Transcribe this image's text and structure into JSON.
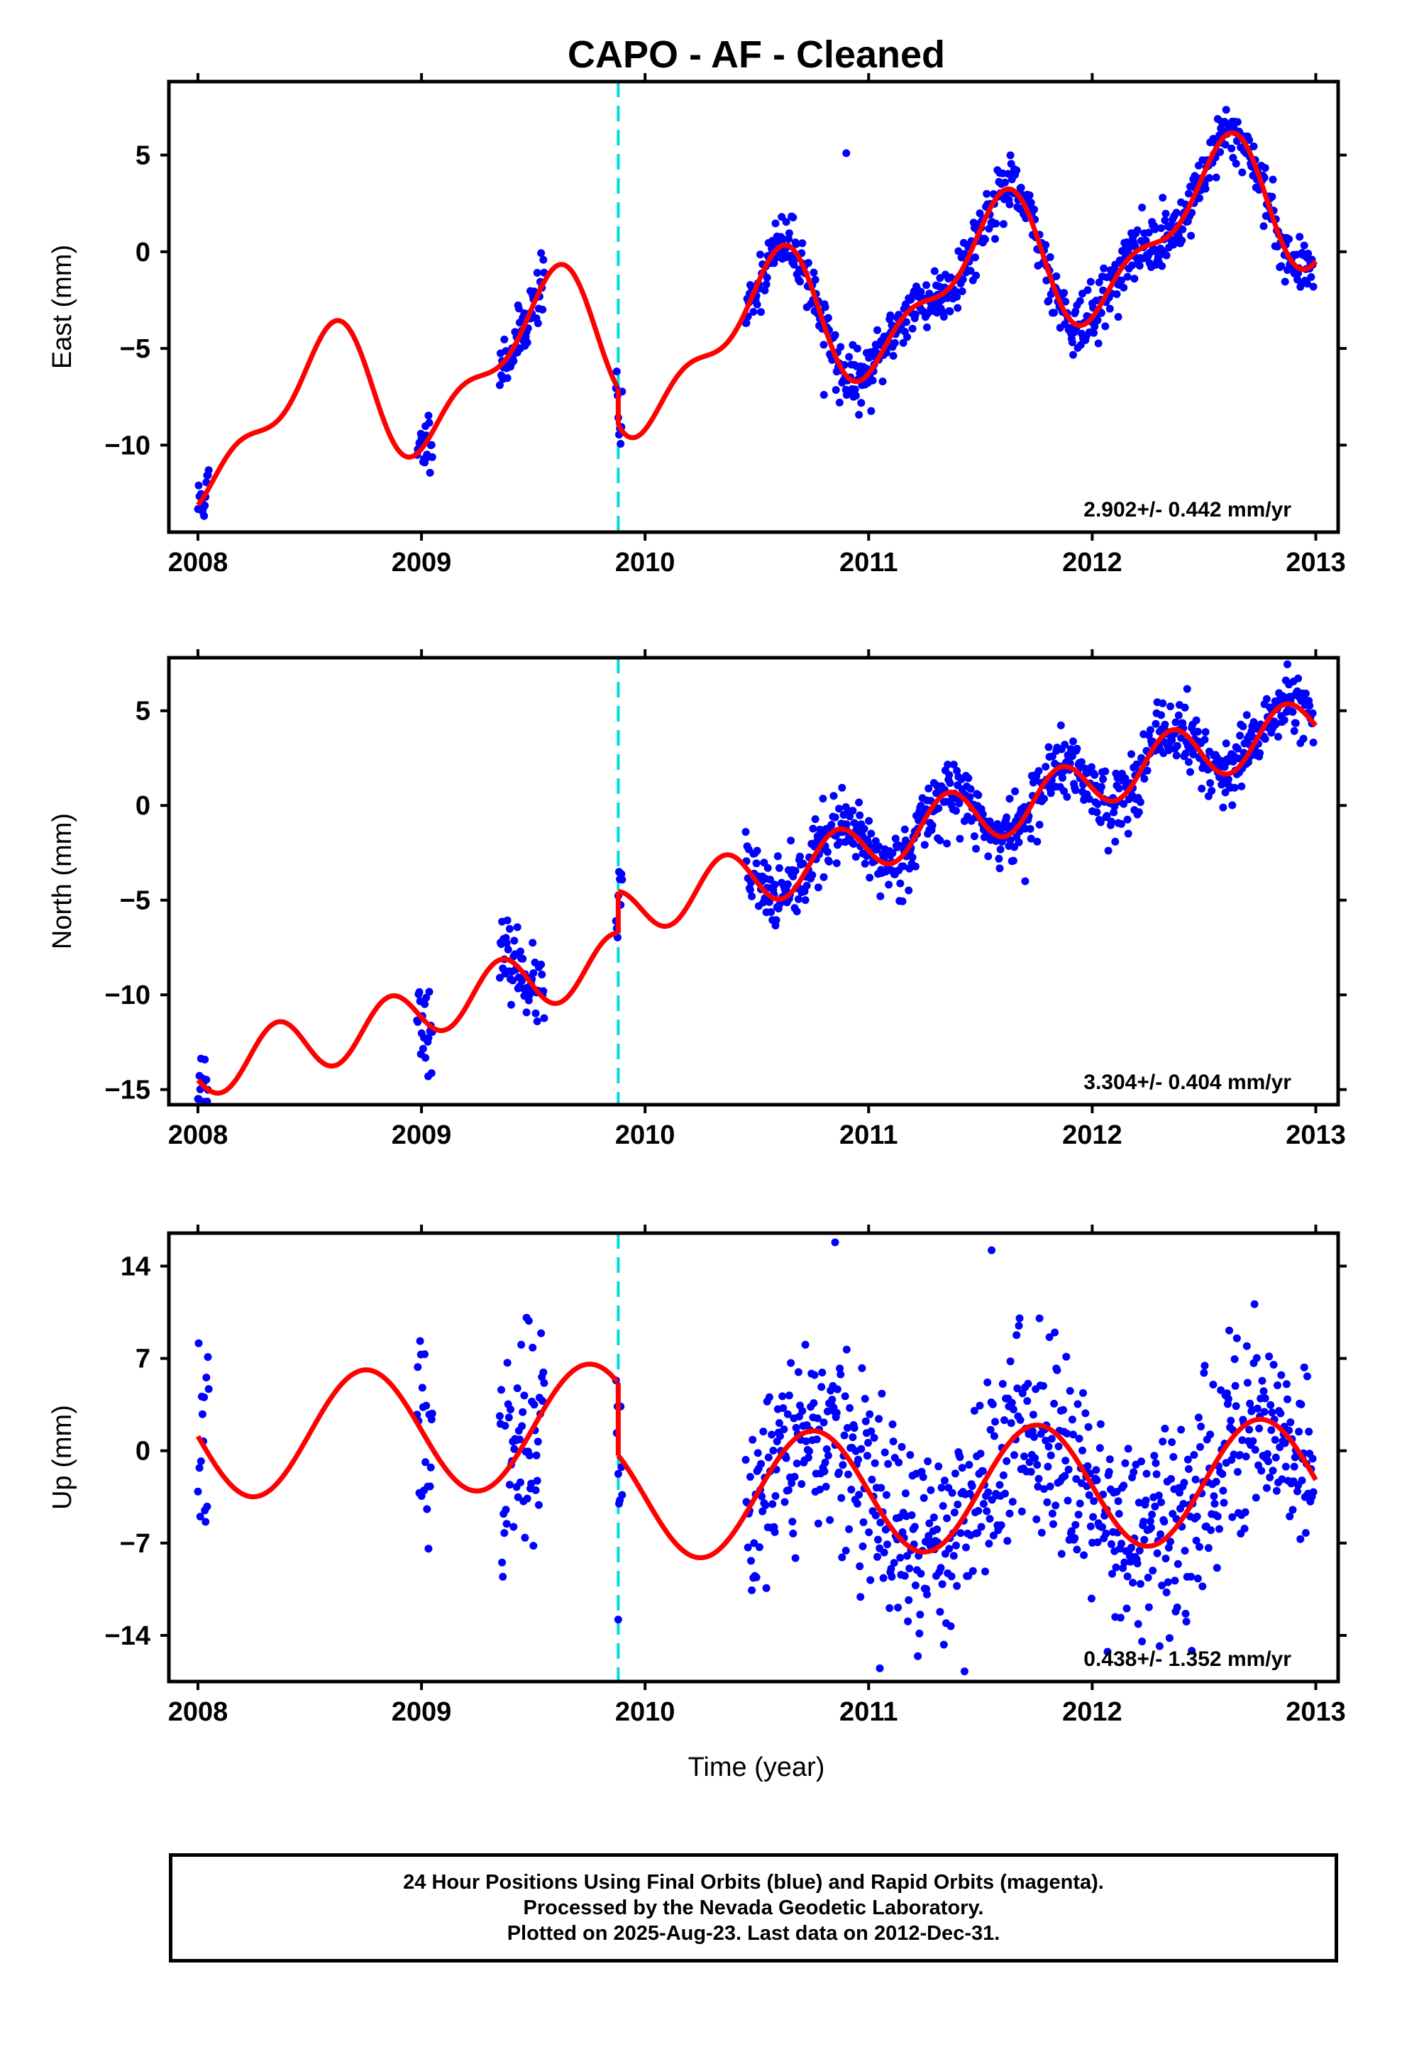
{
  "chart_data": {
    "type": "scatter",
    "title": "CAPO  - AF - Cleaned",
    "xlabel": "Time (year)",
    "xlim": [
      2007.87,
      2013.1
    ],
    "x_ticks": [
      "2008",
      "2009",
      "2010",
      "2011",
      "2012",
      "2013"
    ],
    "x_tick_values": [
      2008,
      2009,
      2010,
      2011,
      2012,
      2013
    ],
    "equipment_change_epoch": 2009.88,
    "colors": {
      "data": "#0000ff",
      "model": "#ff0000",
      "break_line": "#00dcdc"
    },
    "panels": [
      {
        "ylabel": "East (mm)",
        "ylim": [
          -14.5,
          8.8
        ],
        "y_ticks": [
          "5",
          "0",
          "−5",
          "−10"
        ],
        "y_tick_values": [
          5,
          0,
          -5,
          -10
        ],
        "rate": "2.902+/- 0.442 mm/yr",
        "model": {
          "linear": [
            -9.6,
            2.902
          ],
          "annual": [
            -1.0,
            -3.0
          ],
          "semiannual": [
            1.4,
            -0.5
          ],
          "offset": -1.9,
          "offset_epoch": 2009.88
        },
        "noise": 0.75,
        "seed": 11,
        "outliers": [
          [
            2010.9,
            5.1
          ],
          [
            2010.87,
            -7.8
          ],
          [
            2010.8,
            -7.4
          ]
        ]
      },
      {
        "ylabel": "North (mm)",
        "ylim": [
          -15.8,
          7.8
        ],
        "y_ticks": [
          "5",
          "0",
          "−5",
          "−10",
          "−15"
        ],
        "y_tick_values": [
          5,
          0,
          -5,
          -10,
          -15
        ],
        "rate": "3.304+/- 0.404 mm/yr",
        "model": {
          "linear": [
            -14.2,
            3.304
          ],
          "annual": [
            0.2,
            0.0
          ],
          "semiannual": [
            -1.4,
            -0.3
          ],
          "offset": 2.2,
          "offset_epoch": 2009.88
        },
        "noise": 0.9,
        "seed": 23,
        "outliers": [
          [
            2009.03,
            -14.3
          ],
          [
            2011.7,
            -4.0
          ]
        ]
      },
      {
        "ylabel": "Up (mm)",
        "ylim": [
          -17.5,
          16.5
        ],
        "y_ticks": [
          "14",
          "7",
          "0",
          "−7",
          "−14"
        ],
        "y_tick_values": [
          14,
          7,
          0,
          -7,
          -14
        ],
        "rate": "0.438+/- 1.352 mm/yr",
        "model": {
          "linear": [
            1.1,
            0.438
          ],
          "annual": [
            -4.7,
            0.0
          ],
          "semiannual": [
            0.0,
            0.0
          ],
          "offset": -5.5,
          "offset_epoch": 2009.88
        },
        "noise": 3.8,
        "seed": 37,
        "outliers": [
          [
            2010.85,
            15.8
          ],
          [
            2011.05,
            -16.5
          ],
          [
            2009.88,
            -12.8
          ],
          [
            2011.55,
            15.2
          ]
        ]
      }
    ],
    "data_segments": [
      [
        2008.0,
        2008.05
      ],
      [
        2008.98,
        2009.05
      ],
      [
        2009.35,
        2009.55
      ],
      [
        2009.87,
        2009.9
      ],
      [
        2010.45,
        2012.99
      ]
    ]
  },
  "footer": {
    "line1": "24 Hour Positions Using Final Orbits (blue) and Rapid Orbits (magenta).",
    "line2": "Processed by the Nevada Geodetic Laboratory.",
    "line3": "Plotted on 2025-Aug-23. Last data on 2012-Dec-31."
  }
}
